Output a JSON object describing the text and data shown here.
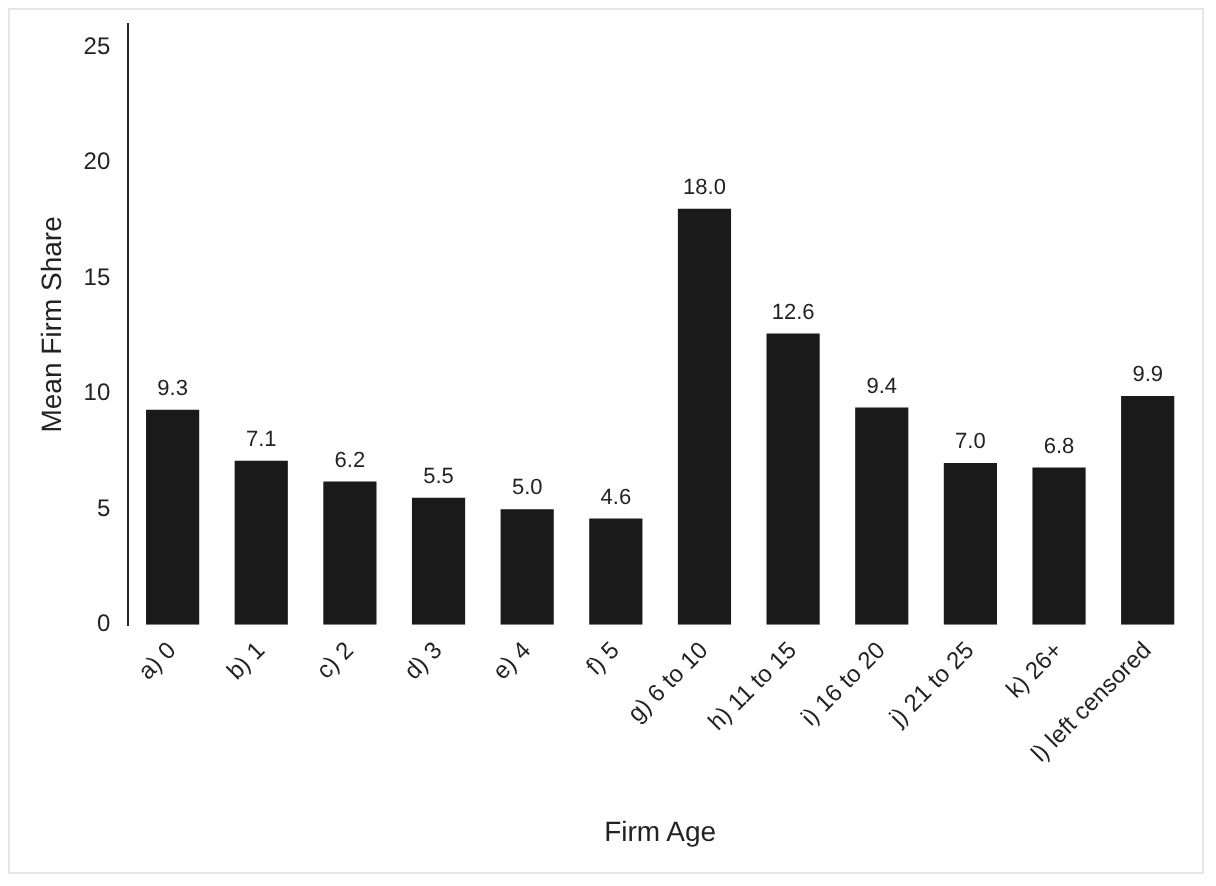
{
  "chart_data": {
    "type": "bar",
    "xlabel": "Firm Age",
    "ylabel": "Mean Firm Share",
    "categories": [
      "a) 0",
      "b) 1",
      "c) 2",
      "d) 3",
      "e) 4",
      "f) 5",
      "g) 6 to 10",
      "h) 11 to 15",
      "i) 16 to 20",
      "j) 21 to 25",
      "k) 26+",
      "l) left censored"
    ],
    "values": [
      9.3,
      7.1,
      6.2,
      5.5,
      5.0,
      4.6,
      18.0,
      12.6,
      9.4,
      7.0,
      6.8,
      9.9
    ],
    "value_labels": [
      "9.3",
      "7.1",
      "6.2",
      "5.5",
      "5.0",
      "4.6",
      "18.0",
      "12.6",
      "9.4",
      "7.0",
      "6.8",
      "9.9"
    ],
    "color": "#1a1a1a",
    "ylim": [
      0,
      26
    ],
    "yticks": [
      0,
      5,
      10,
      15,
      20,
      25
    ],
    "grid": false,
    "legend": false
  }
}
